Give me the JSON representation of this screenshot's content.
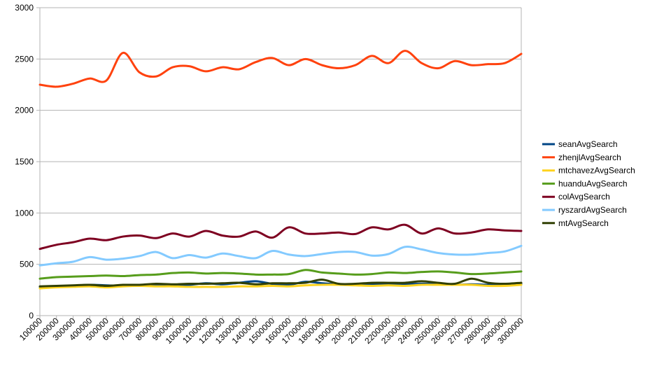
{
  "chart_data": {
    "type": "line",
    "title": "",
    "xlabel": "",
    "ylabel": "",
    "ylim": [
      0,
      3000
    ],
    "yticks": [
      0,
      500,
      1000,
      1500,
      2000,
      2500,
      3000
    ],
    "ytick_labels": [
      "0",
      "500",
      "1000",
      "1500",
      "2000",
      "2500",
      "3000"
    ],
    "grid": true,
    "legend_position": "right",
    "x": [
      100000,
      200000,
      300000,
      400000,
      500000,
      600000,
      700000,
      800000,
      900000,
      1000000,
      1100000,
      1200000,
      1300000,
      1400000,
      1500000,
      1600000,
      1700000,
      1800000,
      1900000,
      2000000,
      2100000,
      2200000,
      2300000,
      2400000,
      2500000,
      2600000,
      2700000,
      2800000,
      2900000,
      3000000
    ],
    "categories": [
      "100000",
      "200000",
      "300000",
      "400000",
      "500000",
      "600000",
      "700000",
      "800000",
      "900000",
      "1000000",
      "1100000",
      "1200000",
      "1300000",
      "1400000",
      "1500000",
      "1600000",
      "1700000",
      "1800000",
      "1900000",
      "2000000",
      "2100000",
      "2200000",
      "2300000",
      "2400000",
      "2500000",
      "2600000",
      "2700000",
      "2800000",
      "2900000",
      "3000000"
    ],
    "series": [
      {
        "name": "seanAvgSearch",
        "color": "#004586",
        "values": [
          280,
          280,
          290,
          300,
          295,
          290,
          295,
          295,
          300,
          300,
          315,
          305,
          320,
          335,
          310,
          300,
          330,
          315,
          305,
          300,
          310,
          300,
          305,
          310,
          310,
          300,
          305,
          300,
          305,
          310
        ]
      },
      {
        "name": "zhenjlAvgSearch",
        "color": "#ff420e",
        "values": [
          2250,
          2230,
          2260,
          2310,
          2290,
          2560,
          2370,
          2330,
          2420,
          2430,
          2380,
          2420,
          2400,
          2470,
          2510,
          2440,
          2500,
          2440,
          2410,
          2440,
          2530,
          2460,
          2580,
          2460,
          2410,
          2480,
          2440,
          2450,
          2460,
          2550
        ]
      },
      {
        "name": "mtchavezAvgSearch",
        "color": "#ffd320",
        "values": [
          265,
          275,
          280,
          285,
          275,
          285,
          290,
          285,
          285,
          280,
          280,
          280,
          285,
          285,
          290,
          285,
          295,
          300,
          300,
          295,
          290,
          295,
          290,
          300,
          300,
          300,
          300,
          290,
          290,
          300
        ]
      },
      {
        "name": "huanduAvgSearch",
        "color": "#579d1c",
        "values": [
          360,
          375,
          380,
          385,
          390,
          385,
          395,
          400,
          415,
          420,
          410,
          415,
          410,
          400,
          400,
          405,
          445,
          420,
          410,
          400,
          405,
          420,
          415,
          425,
          430,
          420,
          405,
          410,
          420,
          430
        ]
      },
      {
        "name": "colAvgSearch",
        "color": "#7e0021",
        "values": [
          650,
          690,
          715,
          750,
          735,
          770,
          780,
          755,
          800,
          770,
          825,
          780,
          770,
          820,
          760,
          860,
          800,
          800,
          810,
          795,
          860,
          840,
          885,
          800,
          850,
          800,
          810,
          840,
          830,
          825
        ]
      },
      {
        "name": "ryszardAvgSearch",
        "color": "#83caff",
        "values": [
          490,
          510,
          525,
          570,
          545,
          555,
          580,
          620,
          560,
          590,
          565,
          605,
          580,
          560,
          630,
          595,
          580,
          600,
          620,
          620,
          585,
          600,
          670,
          645,
          610,
          595,
          595,
          610,
          625,
          680
        ]
      },
      {
        "name": "mtAvgSearch",
        "color": "#314004",
        "values": [
          285,
          290,
          295,
          300,
          290,
          300,
          300,
          310,
          305,
          310,
          310,
          315,
          320,
          305,
          315,
          315,
          320,
          350,
          310,
          310,
          320,
          320,
          320,
          335,
          320,
          310,
          360,
          320,
          310,
          320
        ]
      }
    ]
  }
}
